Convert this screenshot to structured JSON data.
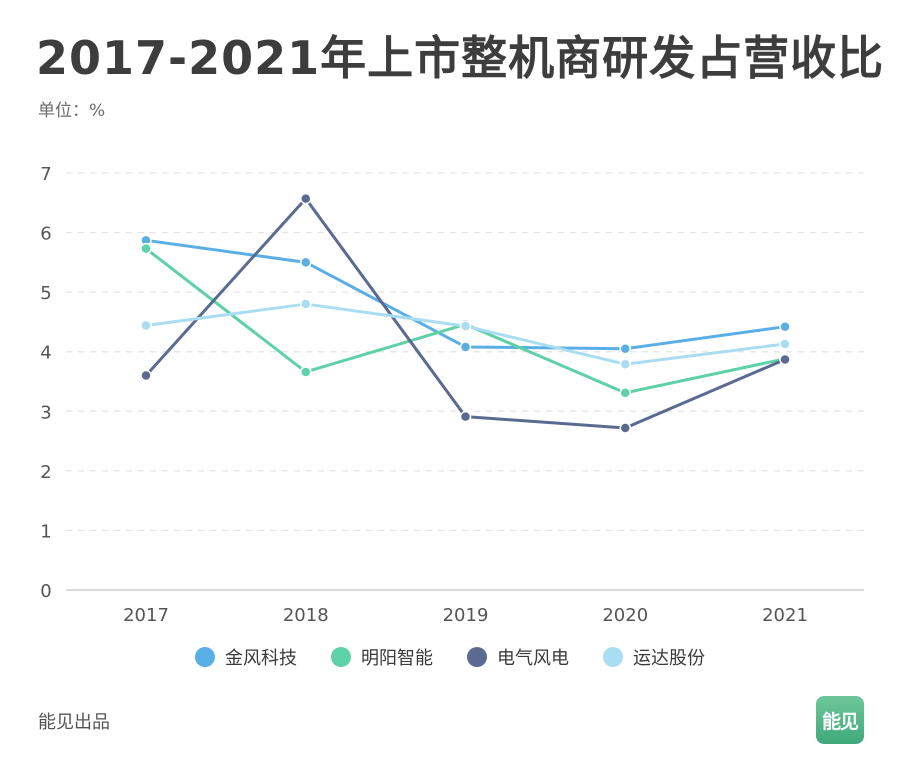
{
  "title": "2017-2021年上市整机商研发占营收比",
  "unit_label": "单位：%",
  "footer": "能见出品",
  "badge_text": "能见",
  "chart_data": {
    "type": "line",
    "title": "2017-2021年上市整机商研发占营收比",
    "ylabel": "单位：%",
    "xlabel": "",
    "categories": [
      "2017",
      "2018",
      "2019",
      "2020",
      "2021"
    ],
    "ylim": [
      0,
      7
    ],
    "yticks": [
      0,
      1,
      2,
      3,
      4,
      5,
      6,
      7
    ],
    "grid": true,
    "legend_position": "bottom",
    "series": [
      {
        "name": "金风科技",
        "color": "#5aaee6",
        "values": [
          5.87,
          5.5,
          4.08,
          4.05,
          4.42
        ]
      },
      {
        "name": "明阳智能",
        "color": "#5ed1a6",
        "values": [
          5.73,
          3.66,
          4.46,
          3.31,
          3.88
        ]
      },
      {
        "name": "电气风电",
        "color": "#5a6a91",
        "values": [
          3.6,
          6.57,
          2.91,
          2.72,
          3.87
        ]
      },
      {
        "name": "运达股份",
        "color": "#a9ddf2",
        "values": [
          4.44,
          4.8,
          4.43,
          3.79,
          4.13
        ]
      }
    ]
  }
}
